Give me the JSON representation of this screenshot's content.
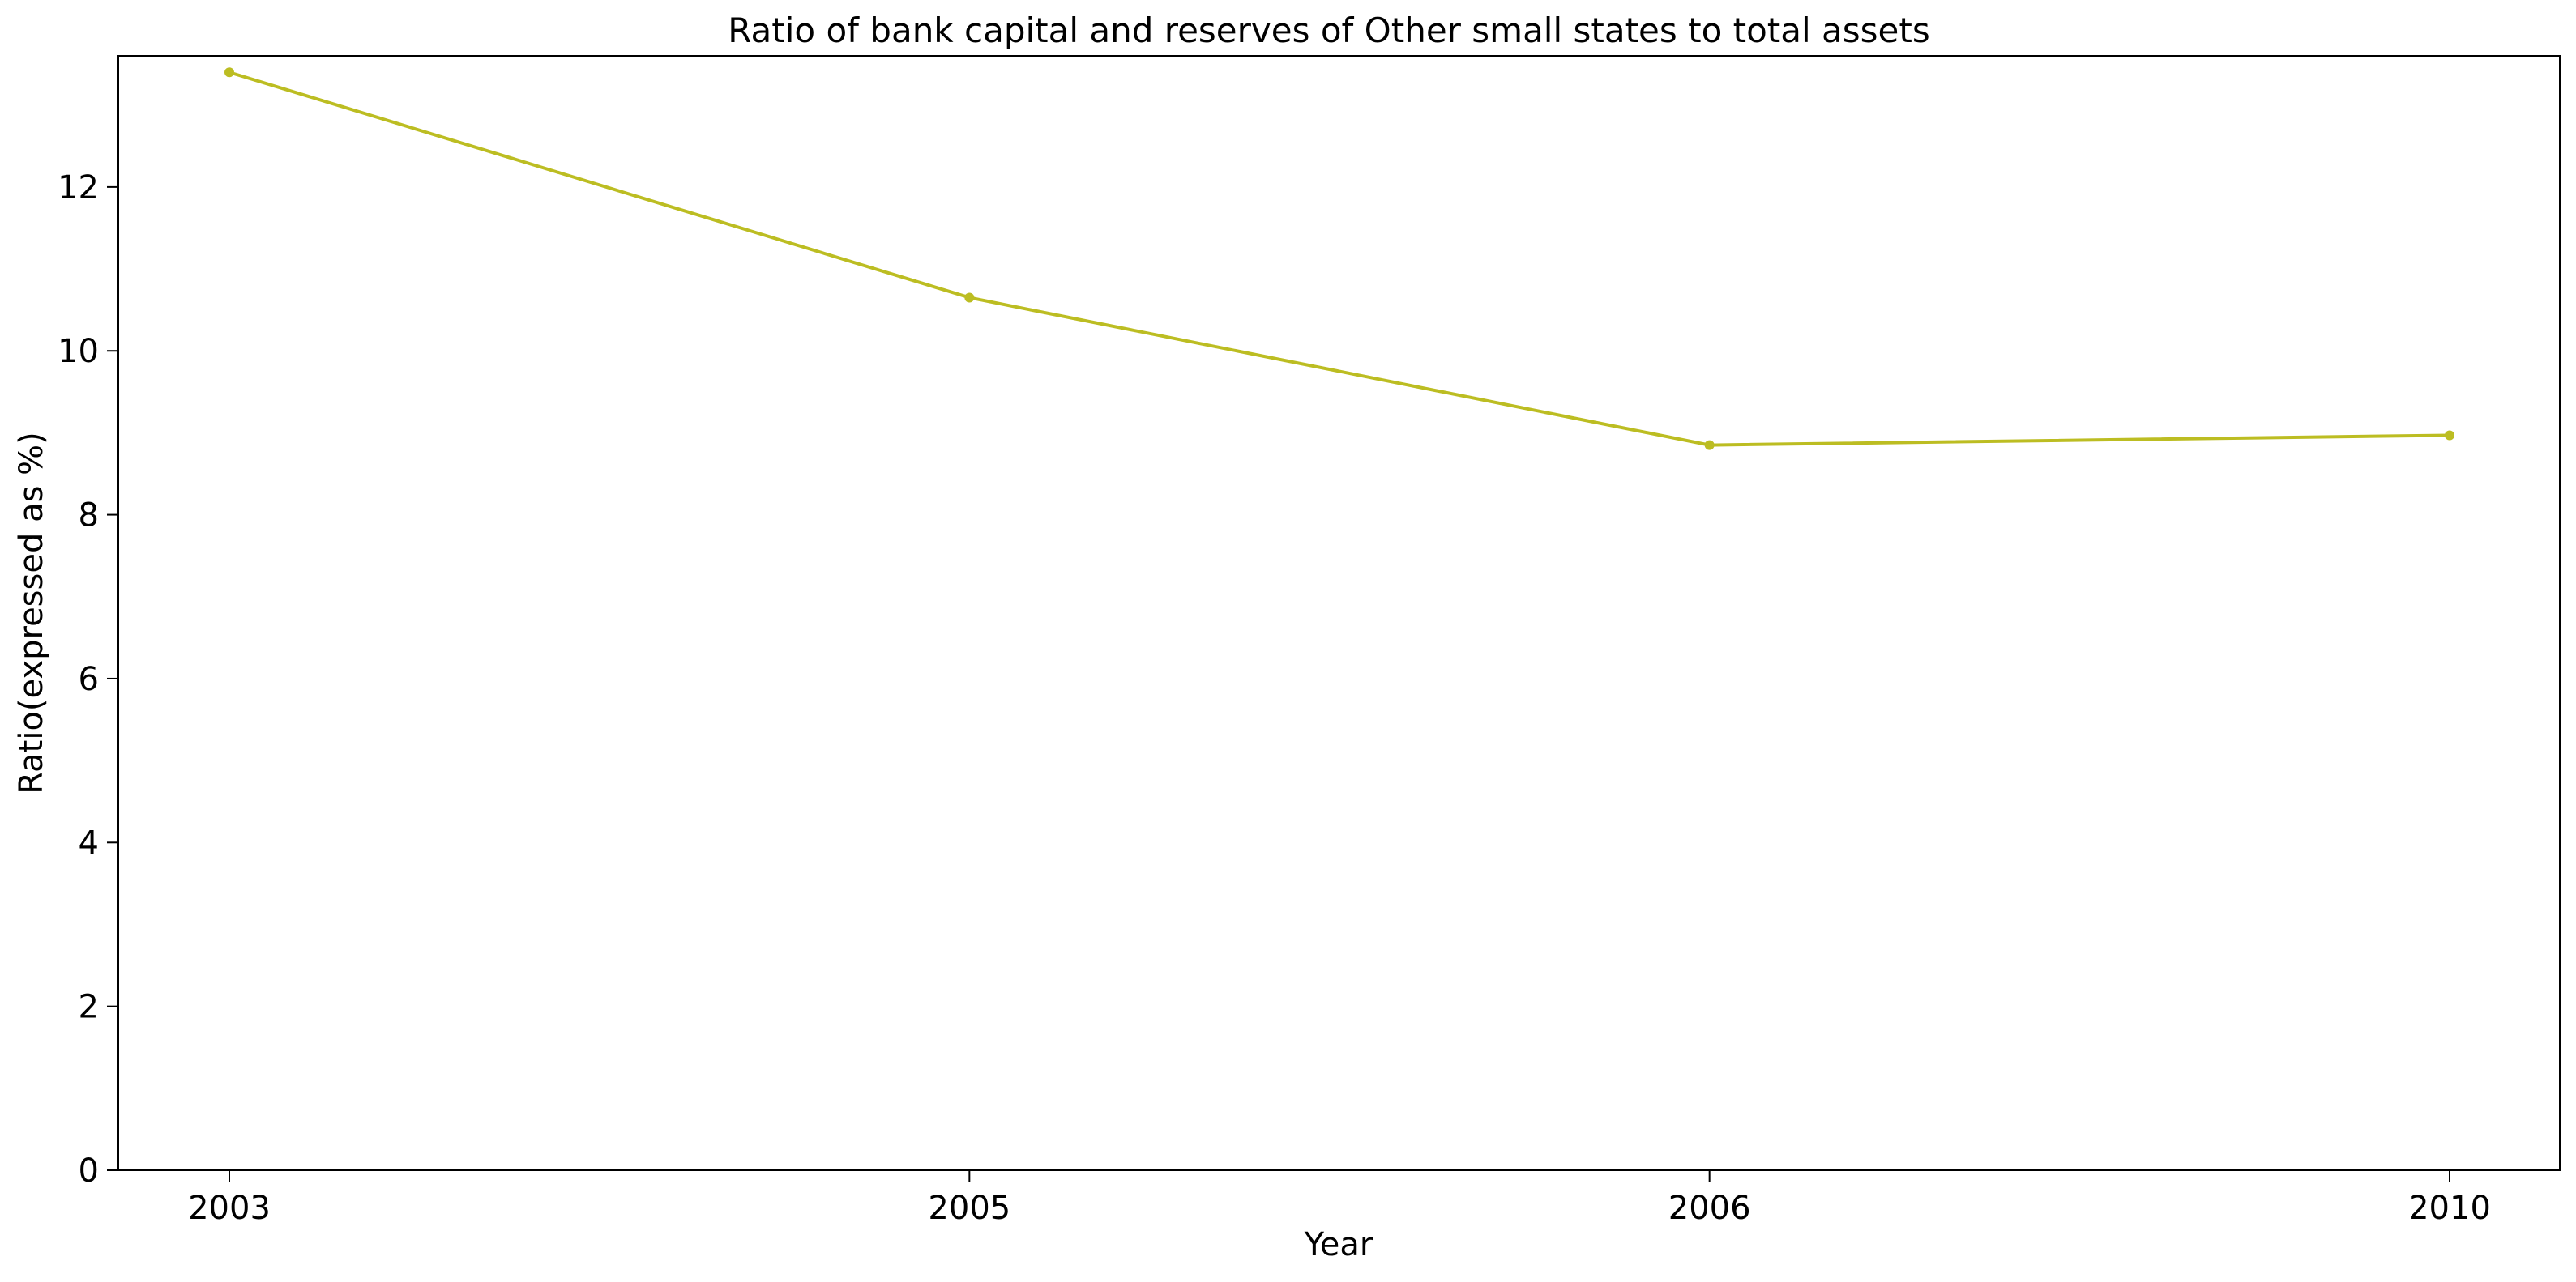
{
  "chart_data": {
    "type": "line",
    "title": "Ratio of bank capital and reserves of Other small states to total assets",
    "xlabel": "Year",
    "ylabel": "Ratio(expressed as %)",
    "categories": [
      "2003",
      "2005",
      "2006",
      "2010"
    ],
    "series": [
      {
        "values": [
          13.4,
          10.65,
          8.85,
          8.97
        ]
      }
    ],
    "yticks": [
      "0",
      "2",
      "4",
      "6",
      "8",
      "10",
      "12"
    ],
    "ylim": [
      0,
      13.6
    ],
    "grid": false,
    "line_color": "#bcbd22"
  }
}
